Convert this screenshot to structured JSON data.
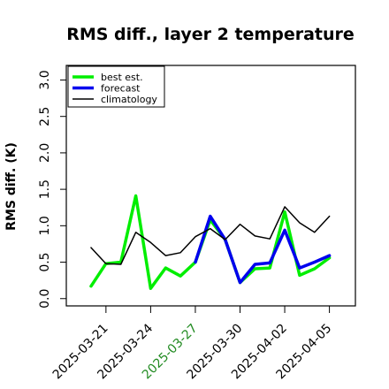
{
  "chart_data": {
    "type": "line",
    "title": "RMS diff., layer 2 temperature",
    "xlabel": "",
    "ylabel": "RMS diff. (K)",
    "ylim": [
      -0.1,
      3.2
    ],
    "y_ticks": [
      0.0,
      0.5,
      1.0,
      1.5,
      2.0,
      2.5,
      3.0
    ],
    "y_tick_labels": [
      "0.0",
      "0.5",
      "1.0",
      "1.5",
      "2.0",
      "2.5",
      "3.0"
    ],
    "x_tick_labels": [
      {
        "label": "2025-03-21",
        "color": "#000000"
      },
      {
        "label": "2025-03-24",
        "color": "#000000"
      },
      {
        "label": "2025-03-27",
        "color": "#228b22"
      },
      {
        "label": "2025-03-30",
        "color": "#000000"
      },
      {
        "label": "2025-04-02",
        "color": "#000000"
      },
      {
        "label": "2025-04-05",
        "color": "#000000"
      }
    ],
    "x": [
      "2025-03-20",
      "2025-03-21",
      "2025-03-22",
      "2025-03-23",
      "2025-03-24",
      "2025-03-25",
      "2025-03-26",
      "2025-03-27",
      "2025-03-28",
      "2025-03-29",
      "2025-03-30",
      "2025-03-31",
      "2025-04-01",
      "2025-04-02",
      "2025-04-03",
      "2025-04-04",
      "2025-04-05"
    ],
    "grid": false,
    "legend_position": "top-left",
    "series": [
      {
        "name": "best est.",
        "color": "#00ee00",
        "width": 3.5,
        "values": [
          0.17,
          0.48,
          0.5,
          1.41,
          0.14,
          0.42,
          0.31,
          0.5,
          1.08,
          0.81,
          0.22,
          0.41,
          0.42,
          1.19,
          0.32,
          0.41,
          0.56
        ]
      },
      {
        "name": "forecast",
        "color": "#0000ee",
        "width": 3.5,
        "values": [
          null,
          null,
          null,
          null,
          null,
          null,
          null,
          0.5,
          1.13,
          0.81,
          0.22,
          0.47,
          0.49,
          0.94,
          0.42,
          0.5,
          0.59
        ]
      },
      {
        "name": "climatology",
        "color": "#000000",
        "width": 1.5,
        "values": [
          0.7,
          0.48,
          0.47,
          0.91,
          0.77,
          0.59,
          0.63,
          0.85,
          0.96,
          0.81,
          1.02,
          0.86,
          0.82,
          1.26,
          1.04,
          0.91,
          1.13
        ]
      }
    ]
  }
}
